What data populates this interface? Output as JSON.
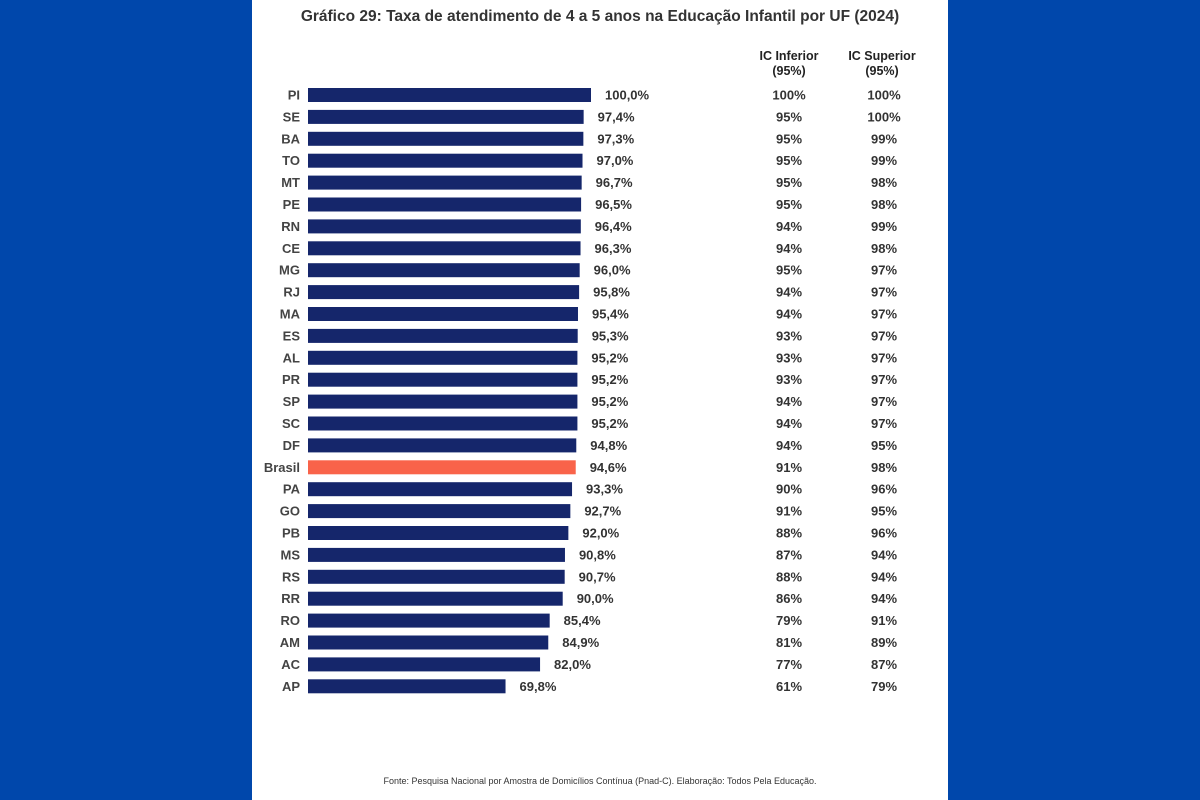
{
  "title": "Gráfico 29: Taxa de atendimento de 4 a 5 anos na Educação Infantil por UF (2024)",
  "footer": "Fonte: Pesquisa Nacional por Amostra de Domicílios Contínua (Pnad-C). Elaboração: Todos Pela Educação.",
  "colors": {
    "background": "#0047ab",
    "bar": "#15266b",
    "highlight": "#f9634a",
    "panel": "#ffffff"
  },
  "columns": {
    "ic_inferior": [
      "IC Inferior",
      "(95%)"
    ],
    "ic_superior": [
      "IC Superior",
      "(95%)"
    ]
  },
  "chart_data": {
    "type": "bar",
    "orientation": "horizontal",
    "highlight_category": "Brasil",
    "xlim": [
      0,
      100
    ],
    "categories": [
      "PI",
      "SE",
      "BA",
      "TO",
      "MT",
      "PE",
      "RN",
      "CE",
      "MG",
      "RJ",
      "MA",
      "ES",
      "AL",
      "PR",
      "SP",
      "SC",
      "DF",
      "Brasil",
      "PA",
      "GO",
      "PB",
      "MS",
      "RS",
      "RR",
      "RO",
      "AM",
      "AC",
      "AP"
    ],
    "values": [
      100.0,
      97.4,
      97.3,
      97.0,
      96.7,
      96.5,
      96.4,
      96.3,
      96.0,
      95.8,
      95.4,
      95.3,
      95.2,
      95.2,
      95.2,
      95.2,
      94.8,
      94.6,
      93.3,
      92.7,
      92.0,
      90.8,
      90.7,
      90.0,
      85.4,
      84.9,
      82.0,
      69.8
    ],
    "value_labels": [
      "100,0%",
      "97,4%",
      "97,3%",
      "97,0%",
      "96,7%",
      "96,5%",
      "96,4%",
      "96,3%",
      "96,0%",
      "95,8%",
      "95,4%",
      "95,3%",
      "95,2%",
      "95,2%",
      "95,2%",
      "95,2%",
      "94,8%",
      "94,6%",
      "93,3%",
      "92,7%",
      "92,0%",
      "90,8%",
      "90,7%",
      "90,0%",
      "85,4%",
      "84,9%",
      "82,0%",
      "69,8%"
    ],
    "ic_inferior": [
      "100%",
      "95%",
      "95%",
      "95%",
      "95%",
      "95%",
      "94%",
      "94%",
      "95%",
      "94%",
      "94%",
      "93%",
      "93%",
      "93%",
      "94%",
      "94%",
      "94%",
      "91%",
      "90%",
      "91%",
      "88%",
      "87%",
      "88%",
      "86%",
      "79%",
      "81%",
      "77%",
      "61%"
    ],
    "ic_superior": [
      "100%",
      "100%",
      "99%",
      "99%",
      "98%",
      "98%",
      "99%",
      "98%",
      "97%",
      "97%",
      "97%",
      "97%",
      "97%",
      "97%",
      "97%",
      "97%",
      "95%",
      "98%",
      "96%",
      "95%",
      "96%",
      "94%",
      "94%",
      "94%",
      "91%",
      "89%",
      "87%",
      "79%"
    ]
  }
}
